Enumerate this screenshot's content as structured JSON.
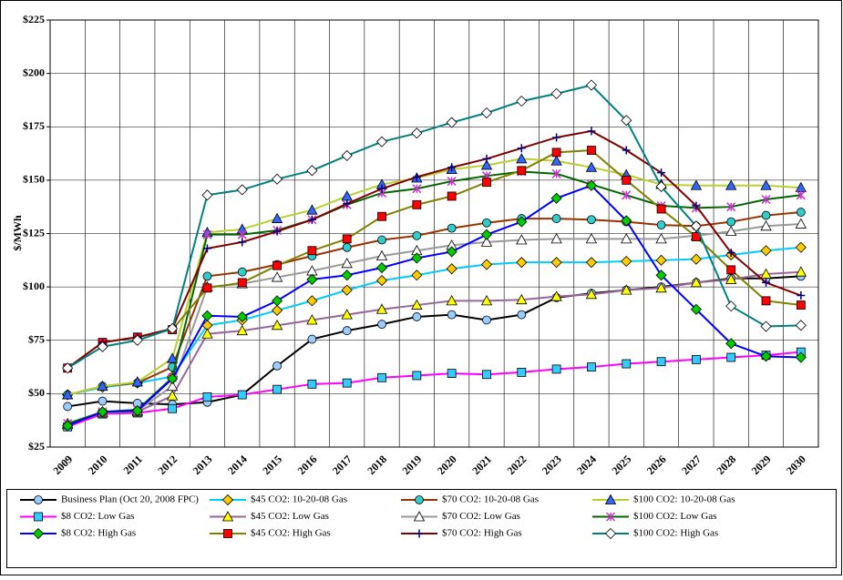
{
  "chart_data": {
    "type": "line",
    "y_label": "$/MWh",
    "categories": [
      "2009",
      "2010",
      "2011",
      "2012",
      "2013",
      "2014",
      "2015",
      "2016",
      "2017",
      "2018",
      "2019",
      "2020",
      "2021",
      "2022",
      "2023",
      "2024",
      "2025",
      "2026",
      "2027",
      "2028",
      "2029",
      "2030"
    ],
    "ylim": [
      25,
      225
    ],
    "yticks": [
      {
        "value": 25,
        "label": "$25"
      },
      {
        "value": 50,
        "label": "$50"
      },
      {
        "value": 75,
        "label": "$75"
      },
      {
        "value": 100,
        "label": "$100"
      },
      {
        "value": 125,
        "label": "$125"
      },
      {
        "value": 150,
        "label": "$150"
      },
      {
        "value": 175,
        "label": "$175"
      },
      {
        "value": 200,
        "label": "$200"
      },
      {
        "value": 225,
        "label": "$225"
      }
    ],
    "grid": true,
    "legend": "bottom",
    "series": [
      {
        "name": "Business Plan (Oct 20, 2008 FPC)",
        "color": "#000000",
        "marker": "circle",
        "marker_color": "#99ccff",
        "values": [
          44,
          46.5,
          45.5,
          45,
          46,
          49.5,
          63,
          75.5,
          79.5,
          82.5,
          86,
          87,
          84.5,
          87,
          95,
          97,
          98.5,
          100,
          102,
          104,
          104,
          105
        ]
      },
      {
        "name": "$45 CO2: 10-20-08 Gas",
        "color": "#00ccff",
        "marker": "diamond",
        "marker_color": "#ffcc00",
        "values": [
          49.5,
          53,
          55,
          58,
          82,
          84.5,
          89,
          93.5,
          98.5,
          103,
          105.5,
          108.5,
          110.5,
          111.5,
          111.5,
          111.5,
          112,
          112.5,
          113,
          115,
          117,
          118.5
        ]
      },
      {
        "name": "$70 CO2: 10-20-08 Gas",
        "color": "#993300",
        "marker": "circle",
        "marker_color": "#33cccc",
        "values": [
          49.5,
          53.5,
          55,
          62.5,
          105,
          107,
          110.5,
          114.5,
          118.5,
          122,
          124,
          127.5,
          130,
          132,
          132,
          131.5,
          130.5,
          129,
          128.5,
          130.5,
          133.5,
          135
        ]
      },
      {
        "name": "$100 CO2: 10-20-08 Gas",
        "color": "#b8d030",
        "marker": "triangle",
        "marker_color": "#3366ff",
        "values": [
          49.5,
          53.5,
          55.5,
          66.5,
          125.5,
          127,
          132,
          136,
          142.5,
          148,
          151,
          155,
          157,
          160,
          159,
          156,
          152.5,
          148,
          147.5,
          147.5,
          147.5,
          146.5
        ]
      },
      {
        "name": "$8 CO2: Low Gas",
        "color": "#ff00ff",
        "marker": "square",
        "marker_color": "#33ccff",
        "values": [
          34.5,
          40.5,
          41,
          43,
          48.5,
          49.5,
          52,
          54.5,
          55,
          57.5,
          58.5,
          59.5,
          59,
          60,
          61.5,
          62.5,
          64,
          65,
          66,
          67,
          68,
          69.5
        ]
      },
      {
        "name": "$45 CO2: Low Gas",
        "color": "#996699",
        "marker": "triangle",
        "marker_color": "#ffff00",
        "values": [
          35.5,
          41,
          41.5,
          49,
          78,
          79.5,
          82,
          84.5,
          87,
          89.5,
          91.5,
          93.5,
          93.5,
          94,
          95.5,
          96.5,
          98.5,
          99.5,
          102,
          103.5,
          106,
          107
        ]
      },
      {
        "name": "$70 CO2: Low Gas",
        "color": "#999999",
        "marker": "triangle",
        "marker_color": "#ffffff",
        "values": [
          36,
          41.5,
          42,
          53.5,
          100,
          101.5,
          104.5,
          107.5,
          111,
          114.5,
          117,
          119.5,
          121,
          122,
          122.5,
          122.5,
          122.5,
          122.5,
          124,
          126,
          128.5,
          129.5
        ]
      },
      {
        "name": "$100 CO2: Low Gas",
        "color": "#006600",
        "marker": "star",
        "marker_color": "#cc33cc",
        "values": [
          36,
          41.5,
          42.5,
          57.5,
          124.5,
          124.5,
          126.5,
          131.5,
          138.5,
          144,
          146,
          149.5,
          152,
          154,
          153,
          148,
          143,
          138,
          137,
          137.5,
          141,
          143
        ]
      },
      {
        "name": "$8 CO2: High Gas",
        "color": "#0000ff",
        "marker": "diamond",
        "marker_color": "#00cc00",
        "values": [
          35,
          41.5,
          42,
          57,
          86.5,
          86,
          93.5,
          103.5,
          105.5,
          109,
          113.5,
          116.5,
          124.5,
          130.5,
          141.5,
          147.5,
          131,
          105.5,
          89.5,
          73.5,
          67.5,
          67
        ]
      },
      {
        "name": "$45 CO2: High Gas",
        "color": "#808000",
        "marker": "square",
        "marker_color": "#ff0000",
        "values": [
          62,
          74,
          76.5,
          80,
          99.5,
          102,
          110,
          117,
          122.5,
          133,
          138.5,
          142.5,
          149,
          154.5,
          163,
          164,
          150,
          136.5,
          123.5,
          108,
          93.5,
          91.5
        ]
      },
      {
        "name": "$70 CO2: High Gas",
        "color": "#800000",
        "marker": "plus",
        "marker_color": "#000080",
        "values": [
          62,
          74,
          76.5,
          80.5,
          118,
          121,
          126,
          131.5,
          139,
          146,
          151.5,
          156,
          160,
          165,
          170,
          173,
          164,
          153.5,
          138,
          116,
          102,
          96
        ]
      },
      {
        "name": "$100 CO2: High Gas",
        "color": "#008080",
        "marker": "diamond",
        "marker_color": "#ffffff",
        "values": [
          62,
          72,
          75,
          80.5,
          143,
          145.5,
          150.5,
          154.5,
          161.5,
          168,
          172,
          177,
          181.5,
          187,
          190.5,
          194.5,
          178,
          147,
          128.5,
          91,
          81.5,
          82
        ]
      }
    ]
  }
}
